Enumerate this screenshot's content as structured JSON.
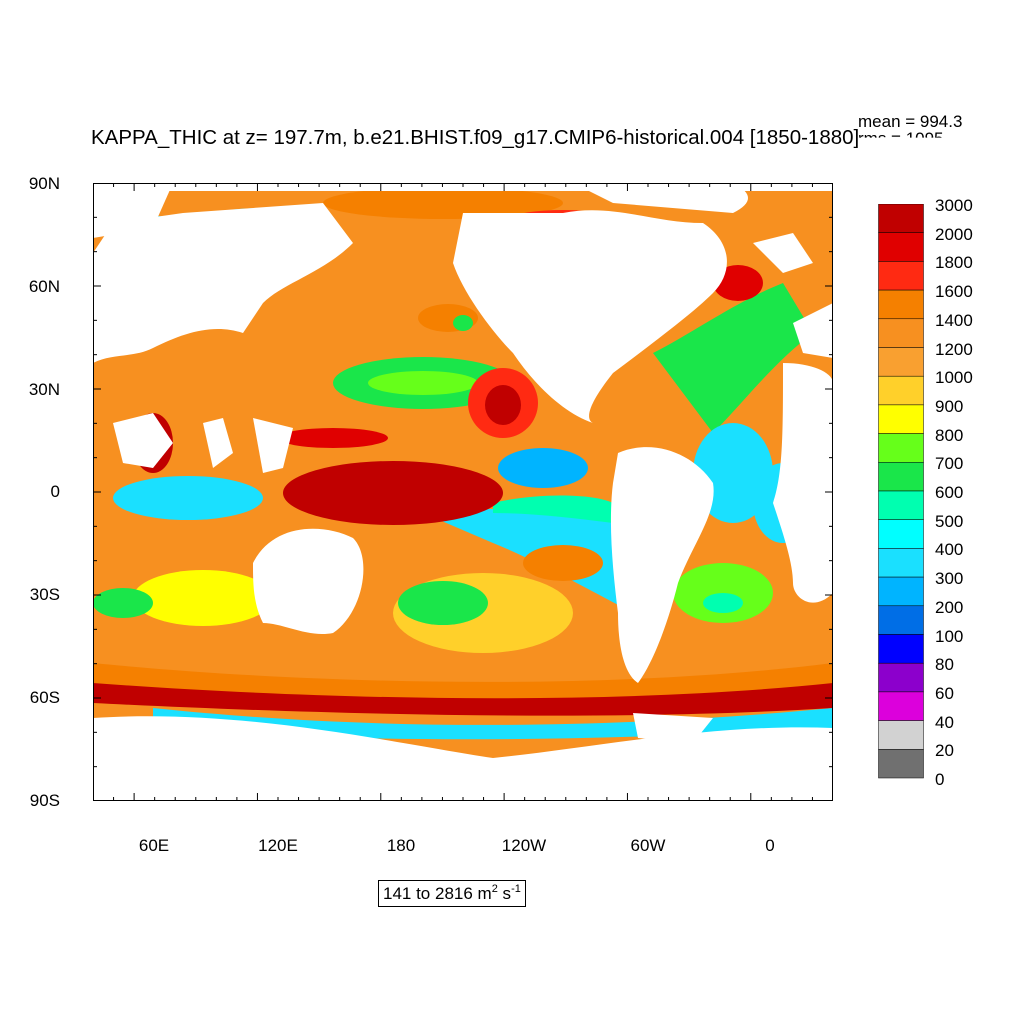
{
  "title": "KAPPA_THIC at z= 197.7m, b.e21.BHIST.f09_g17.CMIP6-historical.004 [1850-1880]",
  "stats": {
    "mean": "mean = 994.3",
    "rms": "rms = 1095"
  },
  "axes": {
    "y_ticks": [
      "90N",
      "60N",
      "30N",
      "0",
      "30S",
      "60S",
      "90S"
    ],
    "x_ticks": [
      "60E",
      "120E",
      "180",
      "120W",
      "60W",
      "0"
    ]
  },
  "colorbar": {
    "labels": [
      "3000",
      "2000",
      "1800",
      "1600",
      "1400",
      "1200",
      "1000",
      "900",
      "800",
      "700",
      "600",
      "500",
      "400",
      "300",
      "200",
      "100",
      "80",
      "60",
      "40",
      "20",
      "0"
    ],
    "colors": [
      "#c00000",
      "#e00000",
      "#ff2a12",
      "#f58000",
      "#f79020",
      "#f9a030",
      "#ffd02a",
      "#ffff00",
      "#66ff1a",
      "#1ae64a",
      "#00ffb0",
      "#00ffff",
      "#1ae0ff",
      "#00b4ff",
      "#006ee6",
      "#0000ff",
      "#8c00cc",
      "#dc00dc",
      "#d2d2d2",
      "#707070"
    ]
  },
  "range": {
    "prefix": "141 to 2816 m",
    "exp1": "2",
    "mid": " s",
    "exp2": "-1"
  },
  "palette": {
    "land": "#ffffff",
    "ocean_base": "#f79020"
  }
}
